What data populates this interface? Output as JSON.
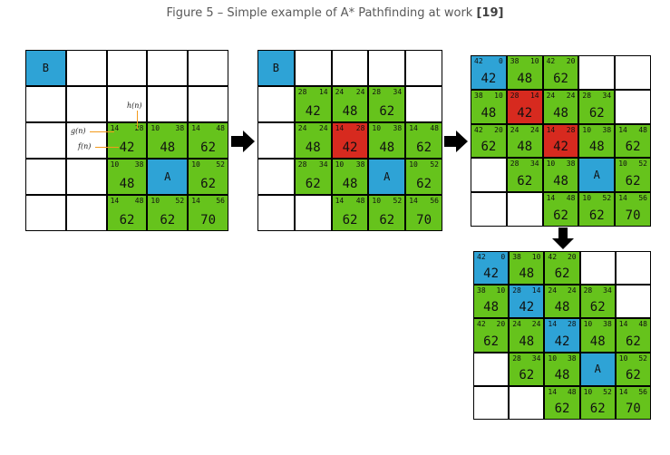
{
  "caption": {
    "text": "Figure 5 – Simple example of A* Pathfinding at work ",
    "ref": "[19]"
  },
  "annotations": {
    "h": "h(n)",
    "g": "g(n)",
    "f": "f(n)"
  },
  "colors": {
    "open": "#66c31c",
    "closed": "#d72a1f",
    "blue": "#2ea3d6",
    "empty": "#ffffff"
  },
  "grids": [
    {
      "cells": [
        {
          "r": 0,
          "c": 0,
          "t": "start",
          "label": "B"
        },
        {
          "r": 2,
          "c": 2,
          "t": "open",
          "g": "14",
          "h": "28",
          "f": "42"
        },
        {
          "r": 2,
          "c": 3,
          "t": "open",
          "g": "10",
          "h": "38",
          "f": "48"
        },
        {
          "r": 2,
          "c": 4,
          "t": "open",
          "g": "14",
          "h": "48",
          "f": "62"
        },
        {
          "r": 3,
          "c": 2,
          "t": "open",
          "g": "10",
          "h": "38",
          "f": "48"
        },
        {
          "r": 3,
          "c": 3,
          "t": "goal",
          "label": "A"
        },
        {
          "r": 3,
          "c": 4,
          "t": "open",
          "g": "10",
          "h": "52",
          "f": "62"
        },
        {
          "r": 4,
          "c": 2,
          "t": "open",
          "g": "14",
          "h": "48",
          "f": "62"
        },
        {
          "r": 4,
          "c": 3,
          "t": "open",
          "g": "10",
          "h": "52",
          "f": "62"
        },
        {
          "r": 4,
          "c": 4,
          "t": "open",
          "g": "14",
          "h": "56",
          "f": "70"
        }
      ]
    },
    {
      "cells": [
        {
          "r": 0,
          "c": 0,
          "t": "start",
          "label": "B"
        },
        {
          "r": 1,
          "c": 1,
          "t": "open",
          "g": "28",
          "h": "14",
          "f": "42"
        },
        {
          "r": 1,
          "c": 2,
          "t": "open",
          "g": "24",
          "h": "24",
          "f": "48"
        },
        {
          "r": 1,
          "c": 3,
          "t": "open",
          "g": "28",
          "h": "34",
          "f": "62"
        },
        {
          "r": 2,
          "c": 1,
          "t": "open",
          "g": "24",
          "h": "24",
          "f": "48"
        },
        {
          "r": 2,
          "c": 2,
          "t": "closed",
          "g": "14",
          "h": "28",
          "f": "42"
        },
        {
          "r": 2,
          "c": 3,
          "t": "open",
          "g": "10",
          "h": "38",
          "f": "48"
        },
        {
          "r": 2,
          "c": 4,
          "t": "open",
          "g": "14",
          "h": "48",
          "f": "62"
        },
        {
          "r": 3,
          "c": 1,
          "t": "open",
          "g": "28",
          "h": "34",
          "f": "62"
        },
        {
          "r": 3,
          "c": 2,
          "t": "open",
          "g": "10",
          "h": "38",
          "f": "48"
        },
        {
          "r": 3,
          "c": 3,
          "t": "goal",
          "label": "A"
        },
        {
          "r": 3,
          "c": 4,
          "t": "open",
          "g": "10",
          "h": "52",
          "f": "62"
        },
        {
          "r": 4,
          "c": 2,
          "t": "open",
          "g": "14",
          "h": "48",
          "f": "62"
        },
        {
          "r": 4,
          "c": 3,
          "t": "open",
          "g": "10",
          "h": "52",
          "f": "62"
        },
        {
          "r": 4,
          "c": 4,
          "t": "open",
          "g": "14",
          "h": "56",
          "f": "70"
        }
      ]
    },
    {
      "cells": [
        {
          "r": 0,
          "c": 0,
          "t": "path",
          "g": "42",
          "h": "0",
          "f": "42"
        },
        {
          "r": 0,
          "c": 1,
          "t": "open",
          "g": "38",
          "h": "10",
          "f": "48"
        },
        {
          "r": 0,
          "c": 2,
          "t": "open",
          "g": "42",
          "h": "20",
          "f": "62"
        },
        {
          "r": 1,
          "c": 0,
          "t": "open",
          "g": "38",
          "h": "10",
          "f": "48"
        },
        {
          "r": 1,
          "c": 1,
          "t": "closed",
          "g": "28",
          "h": "14",
          "f": "42"
        },
        {
          "r": 1,
          "c": 2,
          "t": "open",
          "g": "24",
          "h": "24",
          "f": "48"
        },
        {
          "r": 1,
          "c": 3,
          "t": "open",
          "g": "28",
          "h": "34",
          "f": "62"
        },
        {
          "r": 2,
          "c": 0,
          "t": "open",
          "g": "42",
          "h": "20",
          "f": "62"
        },
        {
          "r": 2,
          "c": 1,
          "t": "open",
          "g": "24",
          "h": "24",
          "f": "48"
        },
        {
          "r": 2,
          "c": 2,
          "t": "closed",
          "g": "14",
          "h": "28",
          "f": "42"
        },
        {
          "r": 2,
          "c": 3,
          "t": "open",
          "g": "10",
          "h": "38",
          "f": "48"
        },
        {
          "r": 2,
          "c": 4,
          "t": "open",
          "g": "14",
          "h": "48",
          "f": "62"
        },
        {
          "r": 3,
          "c": 1,
          "t": "open",
          "g": "28",
          "h": "34",
          "f": "62"
        },
        {
          "r": 3,
          "c": 2,
          "t": "open",
          "g": "10",
          "h": "38",
          "f": "48"
        },
        {
          "r": 3,
          "c": 3,
          "t": "goal",
          "label": "A"
        },
        {
          "r": 3,
          "c": 4,
          "t": "open",
          "g": "10",
          "h": "52",
          "f": "62"
        },
        {
          "r": 4,
          "c": 2,
          "t": "open",
          "g": "14",
          "h": "48",
          "f": "62"
        },
        {
          "r": 4,
          "c": 3,
          "t": "open",
          "g": "10",
          "h": "52",
          "f": "62"
        },
        {
          "r": 4,
          "c": 4,
          "t": "open",
          "g": "14",
          "h": "56",
          "f": "70"
        }
      ]
    },
    {
      "cells": [
        {
          "r": 0,
          "c": 0,
          "t": "path",
          "g": "42",
          "h": "0",
          "f": "42"
        },
        {
          "r": 0,
          "c": 1,
          "t": "open",
          "g": "38",
          "h": "10",
          "f": "48"
        },
        {
          "r": 0,
          "c": 2,
          "t": "open",
          "g": "42",
          "h": "20",
          "f": "62"
        },
        {
          "r": 1,
          "c": 0,
          "t": "open",
          "g": "38",
          "h": "10",
          "f": "48"
        },
        {
          "r": 1,
          "c": 1,
          "t": "path",
          "g": "28",
          "h": "14",
          "f": "42"
        },
        {
          "r": 1,
          "c": 2,
          "t": "open",
          "g": "24",
          "h": "24",
          "f": "48"
        },
        {
          "r": 1,
          "c": 3,
          "t": "open",
          "g": "28",
          "h": "34",
          "f": "62"
        },
        {
          "r": 2,
          "c": 0,
          "t": "open",
          "g": "42",
          "h": "20",
          "f": "62"
        },
        {
          "r": 2,
          "c": 1,
          "t": "open",
          "g": "24",
          "h": "24",
          "f": "48"
        },
        {
          "r": 2,
          "c": 2,
          "t": "path",
          "g": "14",
          "h": "28",
          "f": "42"
        },
        {
          "r": 2,
          "c": 3,
          "t": "open",
          "g": "10",
          "h": "38",
          "f": "48"
        },
        {
          "r": 2,
          "c": 4,
          "t": "open",
          "g": "14",
          "h": "48",
          "f": "62"
        },
        {
          "r": 3,
          "c": 1,
          "t": "open",
          "g": "28",
          "h": "34",
          "f": "62"
        },
        {
          "r": 3,
          "c": 2,
          "t": "open",
          "g": "10",
          "h": "38",
          "f": "48"
        },
        {
          "r": 3,
          "c": 3,
          "t": "goal",
          "label": "A"
        },
        {
          "r": 3,
          "c": 4,
          "t": "open",
          "g": "10",
          "h": "52",
          "f": "62"
        },
        {
          "r": 4,
          "c": 2,
          "t": "open",
          "g": "14",
          "h": "48",
          "f": "62"
        },
        {
          "r": 4,
          "c": 3,
          "t": "open",
          "g": "10",
          "h": "52",
          "f": "62"
        },
        {
          "r": 4,
          "c": 4,
          "t": "open",
          "g": "14",
          "h": "56",
          "f": "70"
        }
      ]
    }
  ]
}
